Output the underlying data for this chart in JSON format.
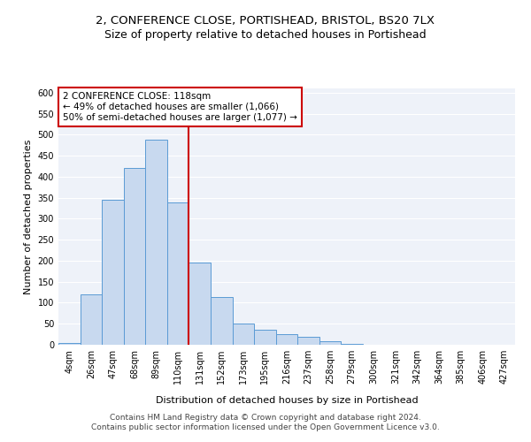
{
  "title": "2, CONFERENCE CLOSE, PORTISHEAD, BRISTOL, BS20 7LX",
  "subtitle": "Size of property relative to detached houses in Portishead",
  "xlabel": "Distribution of detached houses by size in Portishead",
  "ylabel": "Number of detached properties",
  "bar_labels": [
    "4sqm",
    "26sqm",
    "47sqm",
    "68sqm",
    "89sqm",
    "110sqm",
    "131sqm",
    "152sqm",
    "173sqm",
    "195sqm",
    "216sqm",
    "237sqm",
    "258sqm",
    "279sqm",
    "300sqm",
    "321sqm",
    "342sqm",
    "364sqm",
    "385sqm",
    "406sqm",
    "427sqm"
  ],
  "bar_heights": [
    5,
    120,
    345,
    420,
    487,
    338,
    195,
    113,
    50,
    35,
    25,
    18,
    8,
    3,
    1,
    1,
    1,
    1,
    1,
    1,
    1
  ],
  "bar_color": "#c8d9ef",
  "bar_edge_color": "#5b9bd5",
  "vline_color": "#cc0000",
  "annotation_title": "2 CONFERENCE CLOSE: 118sqm",
  "annotation_line1": "← 49% of detached houses are smaller (1,066)",
  "annotation_line2": "50% of semi-detached houses are larger (1,077) →",
  "annotation_box_color": "#ffffff",
  "annotation_box_edge_color": "#cc0000",
  "ylim": [
    0,
    610
  ],
  "yticks": [
    0,
    50,
    100,
    150,
    200,
    250,
    300,
    350,
    400,
    450,
    500,
    550,
    600
  ],
  "footer_line1": "Contains HM Land Registry data © Crown copyright and database right 2024.",
  "footer_line2": "Contains public sector information licensed under the Open Government Licence v3.0.",
  "background_color": "#eef2f9",
  "grid_color": "#ffffff",
  "title_fontsize": 9.5,
  "subtitle_fontsize": 9,
  "axis_label_fontsize": 8,
  "tick_fontsize": 7,
  "annotation_fontsize": 7.5,
  "footer_fontsize": 6.5,
  "vline_x_index": 5.5
}
